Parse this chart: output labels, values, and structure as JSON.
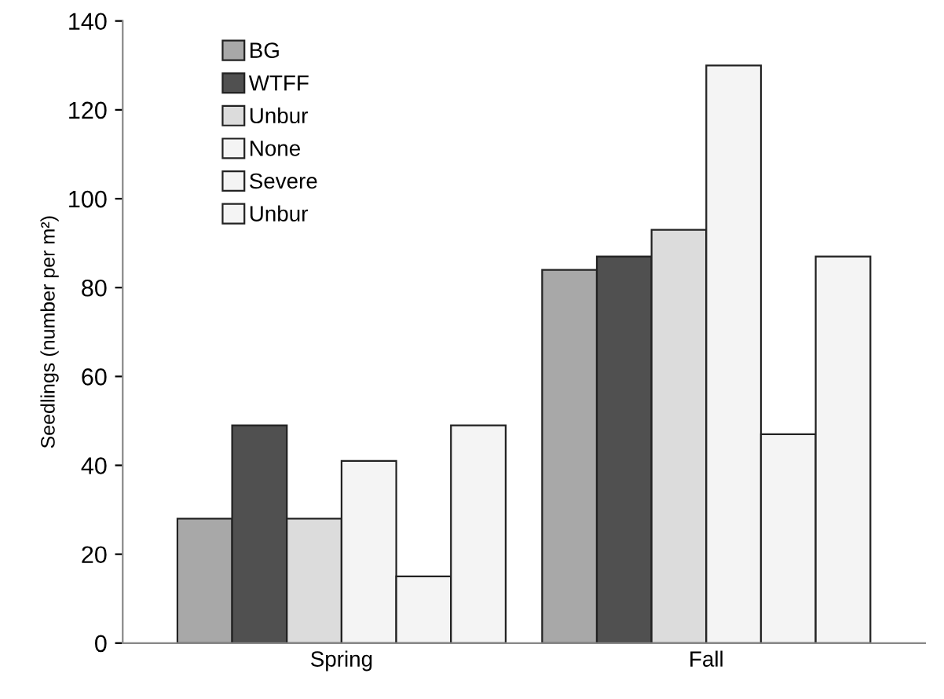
{
  "chart_data": {
    "type": "bar",
    "ylabel": "Seedlings (number per m²)",
    "categories": [
      "Spring",
      "Fall"
    ],
    "series": [
      {
        "name": "BG",
        "color": "#a8a8a8",
        "values": [
          28,
          84
        ]
      },
      {
        "name": "WTFF",
        "color": "#505050",
        "values": [
          49,
          87
        ]
      },
      {
        "name": "Unbur",
        "color": "#dcdcdc",
        "values": [
          28,
          93
        ]
      },
      {
        "name": "None",
        "color": "#f4f4f4",
        "values": [
          41,
          130
        ]
      },
      {
        "name": "Severe",
        "color": "#f4f4f4",
        "values": [
          15,
          47
        ]
      },
      {
        "name": "Unbur",
        "color": "#f4f4f4",
        "values": [
          49,
          87
        ]
      }
    ],
    "ylim": [
      0,
      140
    ],
    "yticks": [
      0,
      20,
      40,
      60,
      80,
      100,
      120,
      140
    ],
    "grid": false,
    "legend": "top left"
  }
}
